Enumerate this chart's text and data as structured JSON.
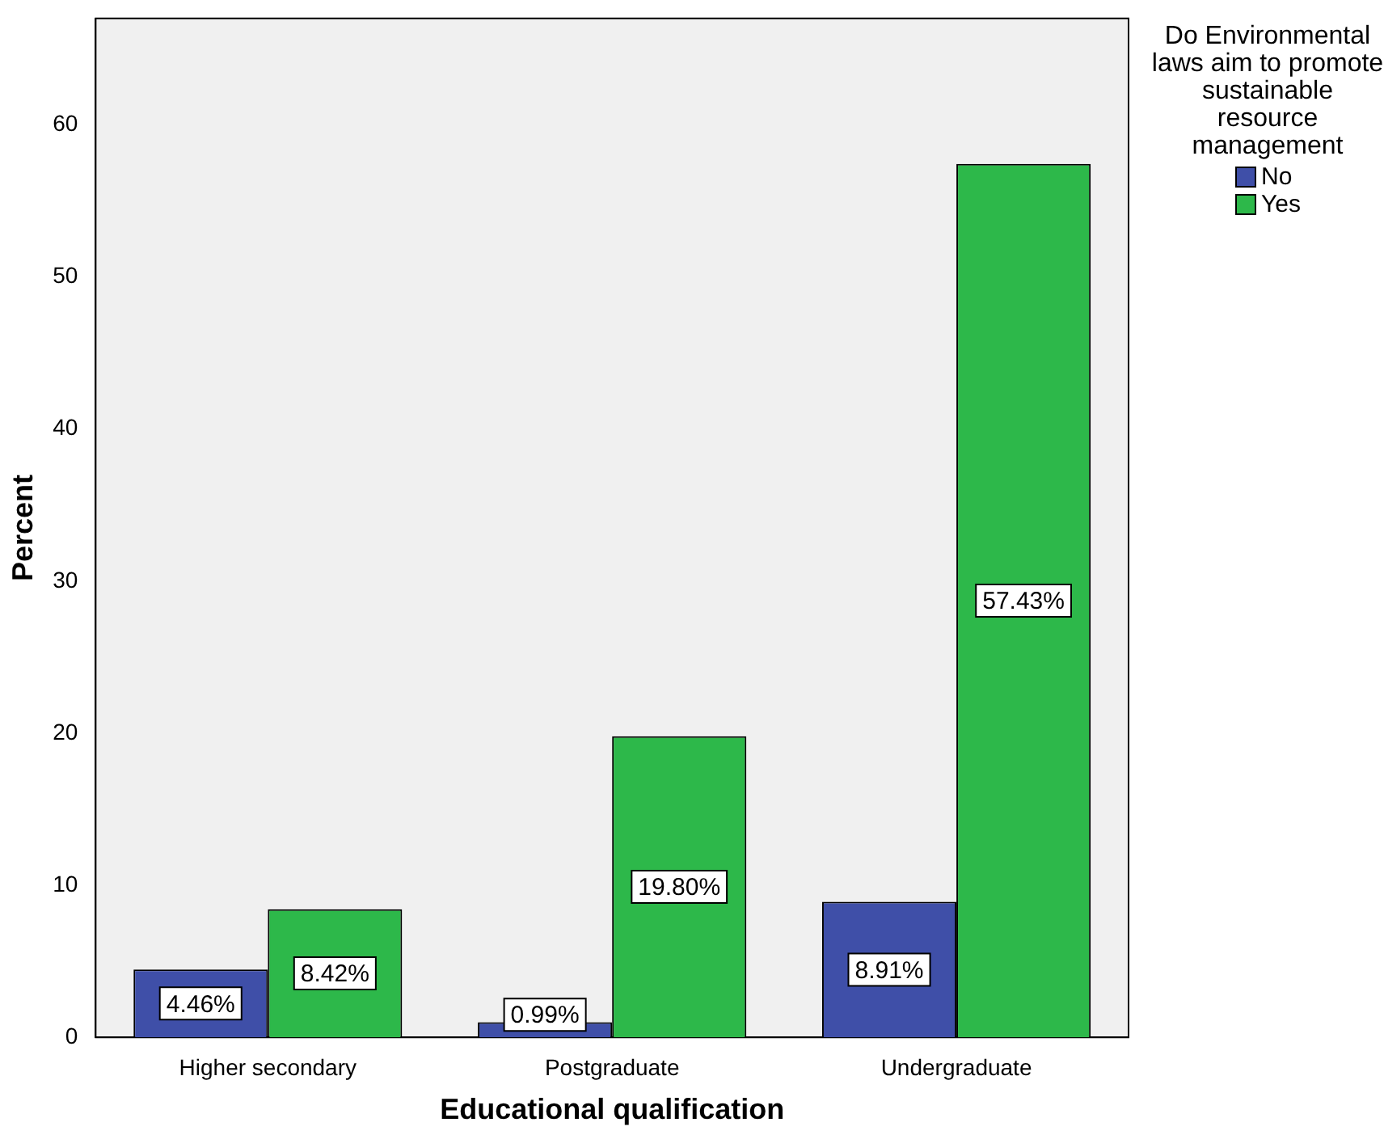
{
  "chart_data": {
    "type": "bar",
    "xlabel": "Educational qualification",
    "ylabel": "Percent",
    "legend_title": "Do Environmental laws aim to promote sustainable resource management",
    "legend": "right",
    "categories": [
      "Higher secondary",
      "Postgraduate",
      "Undergraduate"
    ],
    "series": [
      {
        "name": "No",
        "color": "#3f4fa8",
        "values": [
          4.46,
          0.99,
          8.91
        ],
        "value_labels": [
          "4.46%",
          "0.99%",
          "8.91%"
        ]
      },
      {
        "name": "Yes",
        "color": "#2db84a",
        "values": [
          8.42,
          19.8,
          57.43
        ],
        "value_labels": [
          "8.42%",
          "19.80%",
          "57.43%"
        ]
      }
    ],
    "ylim": [
      0,
      67
    ],
    "yticks": [
      0,
      10,
      20,
      30,
      40,
      50,
      60
    ],
    "grid": false
  }
}
